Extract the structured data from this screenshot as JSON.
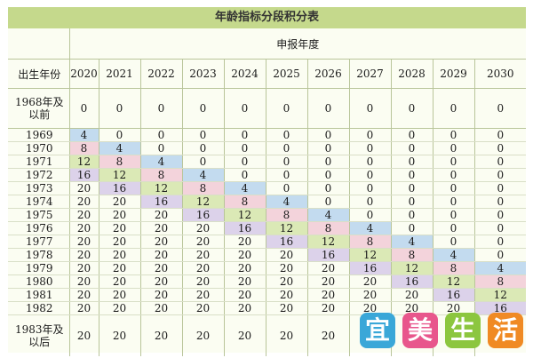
{
  "title": "年龄指标分段积分表",
  "header": {
    "group_label": "申报年度",
    "row_label": "出生年份",
    "years": [
      "2020",
      "2021",
      "2022",
      "2023",
      "2024",
      "2025",
      "2026",
      "2027",
      "2028",
      "2029",
      "2030"
    ]
  },
  "rows": [
    {
      "label": "1968年及以前",
      "values": [
        "0",
        "0",
        "0",
        "0",
        "0",
        "0",
        "0",
        "0",
        "0",
        "0",
        "0"
      ]
    },
    {
      "label": "1969",
      "values": [
        "4",
        "0",
        "0",
        "0",
        "0",
        "0",
        "0",
        "0",
        "0",
        "0",
        "0"
      ]
    },
    {
      "label": "1970",
      "values": [
        "8",
        "4",
        "0",
        "0",
        "0",
        "0",
        "0",
        "0",
        "0",
        "0",
        "0"
      ]
    },
    {
      "label": "1971",
      "values": [
        "12",
        "8",
        "4",
        "0",
        "0",
        "0",
        "0",
        "0",
        "0",
        "0",
        "0"
      ]
    },
    {
      "label": "1972",
      "values": [
        "16",
        "12",
        "8",
        "4",
        "0",
        "0",
        "0",
        "0",
        "0",
        "0",
        "0"
      ]
    },
    {
      "label": "1973",
      "values": [
        "20",
        "16",
        "12",
        "8",
        "4",
        "0",
        "0",
        "0",
        "0",
        "0",
        "0"
      ]
    },
    {
      "label": "1974",
      "values": [
        "20",
        "20",
        "16",
        "12",
        "8",
        "4",
        "0",
        "0",
        "0",
        "0",
        "0"
      ]
    },
    {
      "label": "1975",
      "values": [
        "20",
        "20",
        "20",
        "16",
        "12",
        "8",
        "4",
        "0",
        "0",
        "0",
        "0"
      ]
    },
    {
      "label": "1976",
      "values": [
        "20",
        "20",
        "20",
        "20",
        "16",
        "12",
        "8",
        "4",
        "0",
        "0",
        "0"
      ]
    },
    {
      "label": "1977",
      "values": [
        "20",
        "20",
        "20",
        "20",
        "20",
        "16",
        "12",
        "8",
        "4",
        "0",
        "0"
      ]
    },
    {
      "label": "1978",
      "values": [
        "20",
        "20",
        "20",
        "20",
        "20",
        "20",
        "16",
        "12",
        "8",
        "4",
        "0"
      ]
    },
    {
      "label": "1979",
      "values": [
        "20",
        "20",
        "20",
        "20",
        "20",
        "20",
        "20",
        "16",
        "12",
        "8",
        "4"
      ]
    },
    {
      "label": "1980",
      "values": [
        "20",
        "20",
        "20",
        "20",
        "20",
        "20",
        "20",
        "20",
        "16",
        "12",
        "8"
      ]
    },
    {
      "label": "1981",
      "values": [
        "20",
        "20",
        "20",
        "20",
        "20",
        "20",
        "20",
        "20",
        "20",
        "16",
        "12"
      ]
    },
    {
      "label": "1982",
      "values": [
        "20",
        "20",
        "20",
        "20",
        "20",
        "20",
        "20",
        "20",
        "20",
        "20",
        "16"
      ]
    },
    {
      "label": "1983年及以后",
      "values": [
        "20",
        "20",
        "20",
        "20",
        "20",
        "20",
        "20",
        "20",
        "20",
        "20",
        "20"
      ]
    }
  ],
  "colors": {
    "4": "#c3dbef",
    "8": "#f3d3db",
    "12": "#dbe9b6",
    "16": "#dcd2ea"
  },
  "watermark": {
    "chars": [
      "宜",
      "美",
      "生",
      "活"
    ],
    "colors": [
      "#3aa7d8",
      "#e8568c",
      "#8cc63f",
      "#f08a24"
    ]
  }
}
